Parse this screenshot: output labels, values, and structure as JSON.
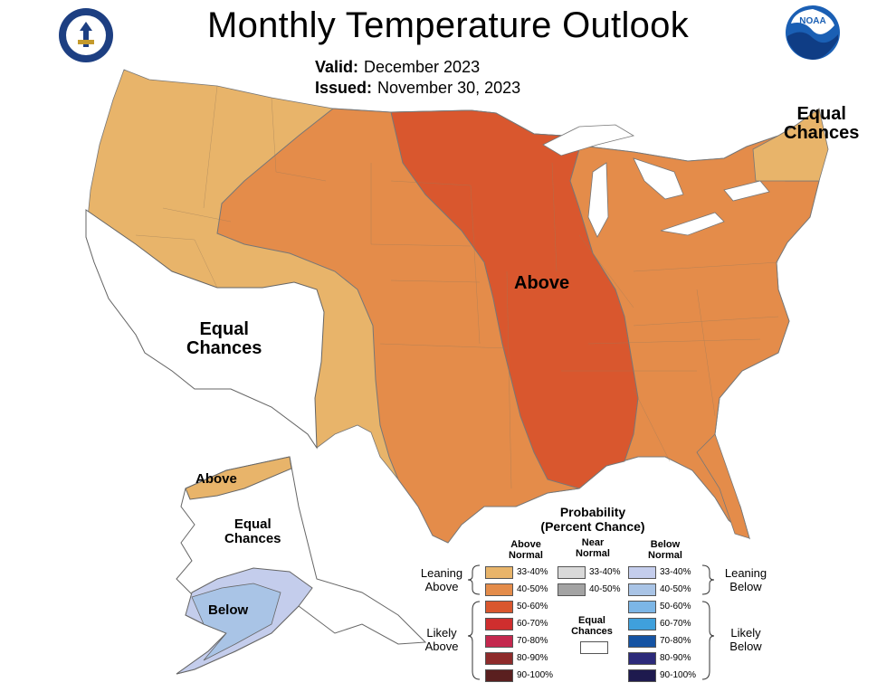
{
  "title": "Monthly Temperature Outlook",
  "valid": {
    "label": "Valid:",
    "value": "December 2023"
  },
  "issued": {
    "label": "Issued:",
    "value": "November 30, 2023"
  },
  "logos": {
    "left": "commerce-seal",
    "right": "noaa-logo",
    "noaa_text": "NOAA"
  },
  "regions": {
    "above": "Above",
    "ec_northeast": [
      "Equal",
      "Chances"
    ],
    "ec_southwest": [
      "Equal",
      "Chances"
    ],
    "alaska_above": "Above",
    "alaska_ec": [
      "Equal",
      "Chances"
    ],
    "alaska_below": "Below"
  },
  "colors": {
    "lean_above": "#e8b46a",
    "above_40_50": "#e48c4a",
    "above_50_60": "#d9572e",
    "lean_below": "#c4cdec",
    "below_40_50": "#a9c4e6",
    "equal_chances": "#ffffff"
  },
  "legend": {
    "title": [
      "Probability",
      "(Percent Chance)"
    ],
    "columns": {
      "above": [
        "Above",
        "Normal"
      ],
      "near": [
        "Near",
        "Normal"
      ],
      "below": [
        "Below",
        "Normal"
      ]
    },
    "leaning_above": [
      "Leaning",
      "Above"
    ],
    "likely_above": [
      "Likely",
      "Above"
    ],
    "leaning_below": [
      "Leaning",
      "Below"
    ],
    "likely_below": [
      "Likely",
      "Below"
    ],
    "equal_chances": [
      "Equal",
      "Chances"
    ],
    "above_bins": [
      {
        "label": "33-40%",
        "color": "#e8b46a"
      },
      {
        "label": "40-50%",
        "color": "#e48c4a"
      },
      {
        "label": "50-60%",
        "color": "#d9572e"
      },
      {
        "label": "60-70%",
        "color": "#cf2e2e"
      },
      {
        "label": "70-80%",
        "color": "#c4284e"
      },
      {
        "label": "80-90%",
        "color": "#8e2b2b"
      },
      {
        "label": "90-100%",
        "color": "#5a1f1f"
      }
    ],
    "near_bins": [
      {
        "label": "33-40%",
        "color": "#d9d9d9"
      },
      {
        "label": "40-50%",
        "color": "#a3a3a3"
      }
    ],
    "below_bins": [
      {
        "label": "33-40%",
        "color": "#c4cdec"
      },
      {
        "label": "40-50%",
        "color": "#a9c4e6"
      },
      {
        "label": "50-60%",
        "color": "#7cb6e6"
      },
      {
        "label": "60-70%",
        "color": "#3fa0dc"
      },
      {
        "label": "70-80%",
        "color": "#1553a3"
      },
      {
        "label": "80-90%",
        "color": "#2c2a7a"
      },
      {
        "label": "90-100%",
        "color": "#1e1a4e"
      }
    ]
  }
}
